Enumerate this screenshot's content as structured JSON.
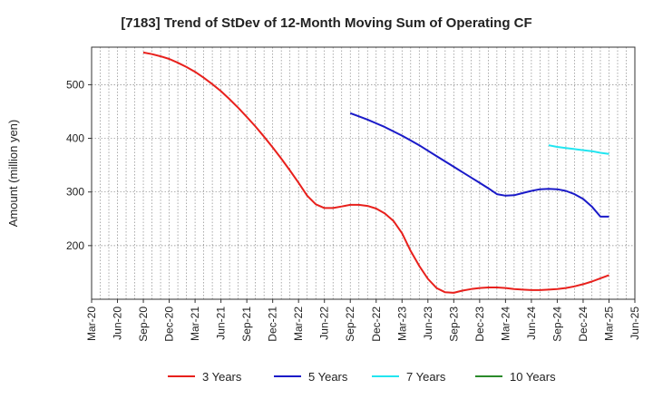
{
  "chart_data": {
    "type": "line",
    "title": "[7183]  Trend of StDev of 12-Month Moving Sum of Operating CF",
    "xlabel": "",
    "ylabel": "Amount (million yen)",
    "ylim": [
      100,
      570
    ],
    "yticks": [
      200,
      300,
      400,
      500
    ],
    "x_tick_labels": [
      "Mar-20",
      "Jun-20",
      "Sep-20",
      "Dec-20",
      "Mar-21",
      "Jun-21",
      "Sep-21",
      "Dec-21",
      "Mar-22",
      "Jun-22",
      "Sep-22",
      "Dec-22",
      "Mar-23",
      "Jun-23",
      "Sep-23",
      "Dec-23",
      "Mar-24",
      "Jun-24",
      "Sep-24",
      "Dec-24",
      "Mar-25",
      "Jun-25"
    ],
    "grid": true,
    "legend_position": "bottom",
    "series": [
      {
        "name": "3 Years",
        "color": "#e8201c",
        "x": [
          "Sep-20",
          "Oct-20",
          "Nov-20",
          "Dec-20",
          "Jan-21",
          "Feb-21",
          "Mar-21",
          "Apr-21",
          "May-21",
          "Jun-21",
          "Jul-21",
          "Aug-21",
          "Sep-21",
          "Oct-21",
          "Nov-21",
          "Dec-21",
          "Jan-22",
          "Feb-22",
          "Mar-22",
          "Apr-22",
          "May-22",
          "Jun-22",
          "Jul-22",
          "Aug-22",
          "Sep-22",
          "Oct-22",
          "Nov-22",
          "Dec-22",
          "Jan-23",
          "Feb-23",
          "Mar-23",
          "Apr-23",
          "May-23",
          "Jun-23",
          "Jul-23",
          "Aug-23",
          "Sep-23",
          "Oct-23",
          "Nov-23",
          "Dec-23",
          "Jan-24",
          "Feb-24",
          "Mar-24",
          "Apr-24",
          "May-24",
          "Jun-24",
          "Jul-24",
          "Aug-24",
          "Sep-24",
          "Oct-24",
          "Nov-24",
          "Dec-24",
          "Jan-25",
          "Feb-25",
          "Mar-25"
        ],
        "values": [
          560,
          557,
          553,
          548,
          541,
          533,
          524,
          513,
          501,
          488,
          473,
          457,
          440,
          422,
          403,
          383,
          362,
          340,
          317,
          293,
          277,
          270,
          270,
          273,
          276,
          276,
          274,
          269,
          260,
          246,
          223,
          190,
          162,
          138,
          121,
          113,
          112,
          116,
          119,
          121,
          122,
          122,
          121,
          119,
          118,
          117,
          117,
          118,
          119,
          121,
          124,
          128,
          133,
          139,
          145
        ]
      },
      {
        "name": "5 Years",
        "color": "#1a1ac8",
        "x": [
          "Sep-22",
          "Oct-22",
          "Nov-22",
          "Dec-22",
          "Jan-23",
          "Feb-23",
          "Mar-23",
          "Apr-23",
          "May-23",
          "Jun-23",
          "Jul-23",
          "Aug-23",
          "Sep-23",
          "Oct-23",
          "Nov-23",
          "Dec-23",
          "Jan-24",
          "Feb-24",
          "Mar-24",
          "Apr-24",
          "May-24",
          "Jun-24",
          "Jul-24",
          "Aug-24",
          "Sep-24",
          "Oct-24",
          "Nov-24",
          "Dec-24",
          "Jan-25",
          "Feb-25",
          "Mar-25"
        ],
        "values": [
          447,
          441,
          435,
          428,
          421,
          413,
          405,
          396,
          387,
          377,
          367,
          357,
          347,
          337,
          327,
          317,
          307,
          296,
          293,
          294,
          298,
          302,
          305,
          306,
          305,
          302,
          296,
          287,
          273,
          254,
          254
        ]
      },
      {
        "name": "7 Years",
        "color": "#22e5f0",
        "x": [
          "Aug-24",
          "Sep-24",
          "Oct-24",
          "Nov-24",
          "Dec-24",
          "Jan-25",
          "Feb-25",
          "Mar-25"
        ],
        "values": [
          387,
          384,
          382,
          380,
          378,
          376,
          373,
          371
        ]
      },
      {
        "name": "10 Years",
        "color": "#2a8a2a",
        "x": [],
        "values": []
      }
    ]
  }
}
